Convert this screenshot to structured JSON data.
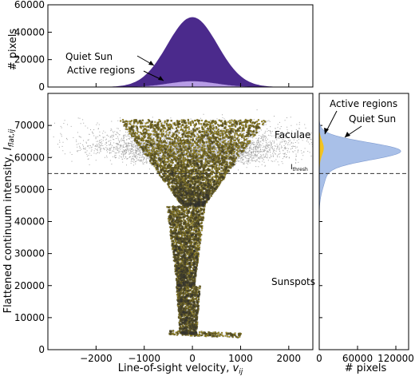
{
  "chart_data": [
    {
      "id": "top-histogram",
      "type": "area",
      "xlabel": "",
      "ylabel": "# pixels",
      "xlim": [
        -3000,
        2500
      ],
      "ylim": [
        0,
        60000
      ],
      "yticks": [
        "0",
        "20000",
        "40000",
        "60000"
      ],
      "series": [
        {
          "name": "Quiet Sun",
          "color": "#4b2a8c",
          "center": 0,
          "sigma": 520,
          "peak": 51000
        },
        {
          "name": "Active regions",
          "color": "#b79ce6",
          "center": 0,
          "sigma": 500,
          "peak": 4200
        }
      ],
      "annotations": [
        "Quiet Sun",
        "Active regions"
      ]
    },
    {
      "id": "main-scatter",
      "type": "scatter",
      "xlabel": "Line-of-sight velocity, ",
      "xlabel_var": "v",
      "xlabel_sub": "ij",
      "ylabel": "Flattened continuum intensity, ",
      "ylabel_var": "I",
      "ylabel_sub": "flat,ij",
      "xlim": [
        -3000,
        2500
      ],
      "ylim": [
        0,
        80000
      ],
      "xticks": [
        "−2000",
        "−1000",
        "0",
        "1000",
        "2000"
      ],
      "yticks": [
        "0",
        "10000",
        "20000",
        "30000",
        "40000",
        "50000",
        "60000",
        "70000"
      ],
      "threshold": 55000,
      "threshold_label": "I",
      "threshold_sub": "thresh",
      "series": [
        {
          "name": "Quiet Sun",
          "color": "#000000"
        },
        {
          "name": "Active regions",
          "color": "#b8a012"
        }
      ],
      "annotations": [
        "Faculae",
        "Sunspots"
      ]
    },
    {
      "id": "right-histogram",
      "type": "area",
      "xlabel": "# pixels",
      "ylabel": "",
      "xlim": [
        0,
        140000
      ],
      "ylim": [
        0,
        80000
      ],
      "xticks": [
        "0",
        "60000",
        "120000"
      ],
      "series": [
        {
          "name": "Quiet Sun",
          "color": "#a9c0e8",
          "center": 62000,
          "sigma": 2700,
          "peak": 125000
        },
        {
          "name": "Active regions",
          "color": "#f3c320",
          "center": 63000,
          "sigma": 2300,
          "peak": 7000
        }
      ],
      "annotations": [
        "Active regions",
        "Quiet Sun"
      ]
    }
  ]
}
